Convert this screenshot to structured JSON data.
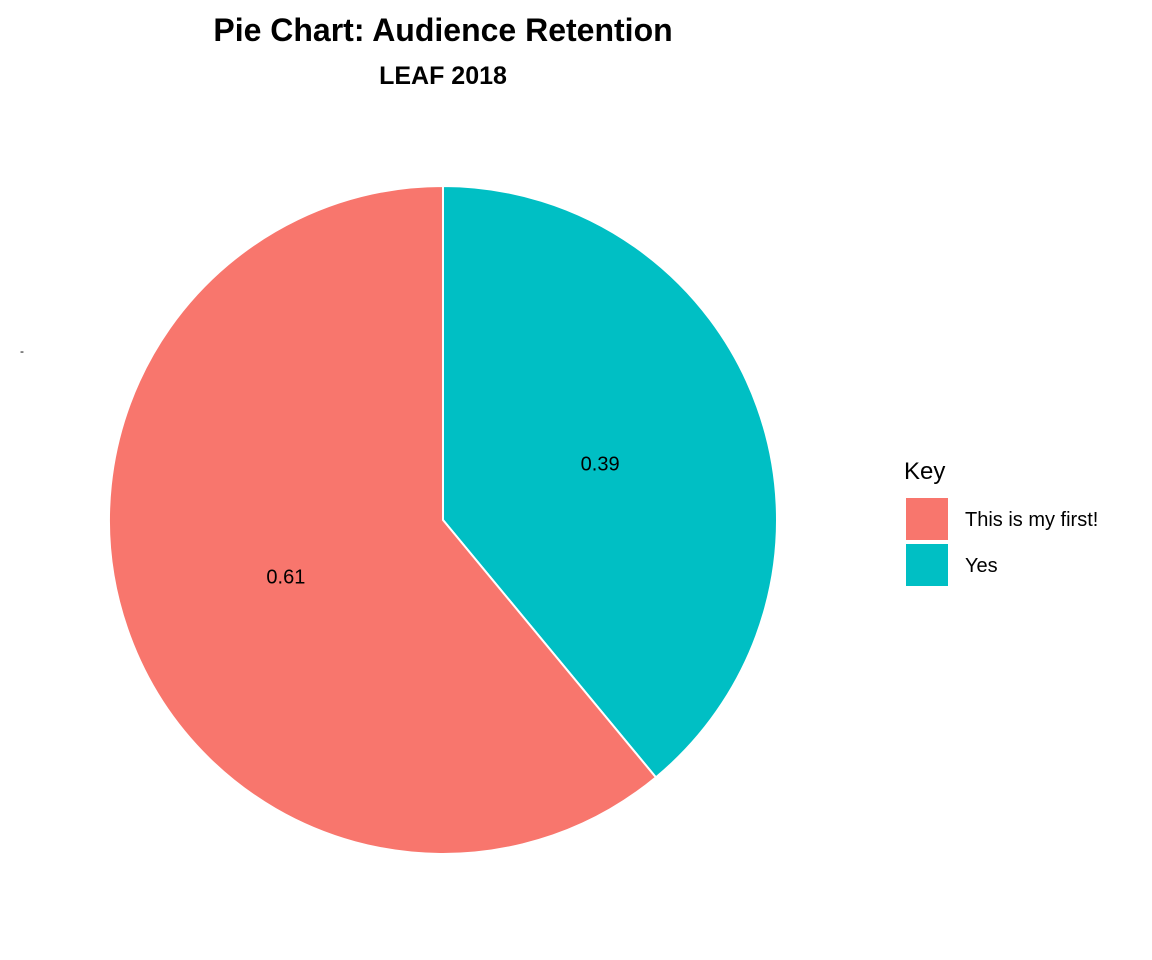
{
  "chart_data": {
    "type": "pie",
    "title": "Pie Chart: Audience Retention",
    "subtitle": "LEAF 2018",
    "categories": [
      "This is my first!",
      "Yes"
    ],
    "values": [
      0.61,
      0.39
    ],
    "value_labels": [
      "0.61",
      "0.39"
    ],
    "colors": [
      "#F8766D",
      "#00BFC4"
    ],
    "legend": {
      "title": "Key",
      "placement": "right",
      "entries": [
        "This is my first!",
        "Yes"
      ]
    },
    "axis_tick_label": "-",
    "grid": false
  }
}
